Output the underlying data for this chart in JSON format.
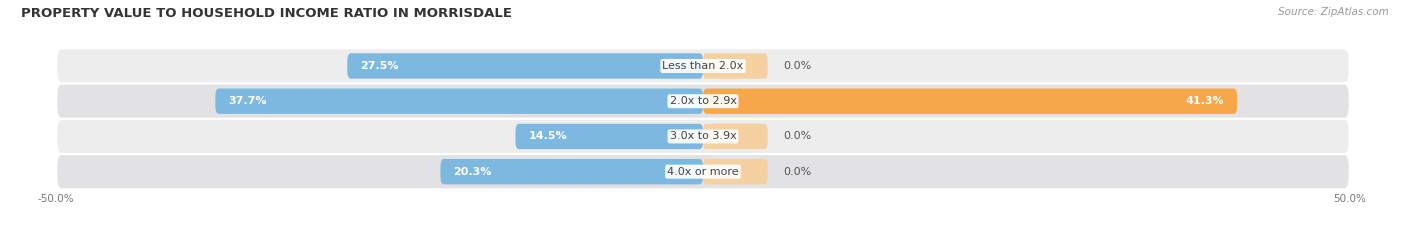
{
  "title": "PROPERTY VALUE TO HOUSEHOLD INCOME RATIO IN MORRISDALE",
  "source": "Source: ZipAtlas.com",
  "categories": [
    "Less than 2.0x",
    "2.0x to 2.9x",
    "3.0x to 3.9x",
    "4.0x or more"
  ],
  "without_mortgage": [
    27.5,
    37.7,
    14.5,
    20.3
  ],
  "with_mortgage": [
    0.0,
    41.3,
    0.0,
    0.0
  ],
  "xlim": [
    -50,
    50
  ],
  "color_without": "#7db8e0",
  "color_with": "#f5a74a",
  "color_with_light": "#f5d0a0",
  "color_bg_odd": "#ededee",
  "color_bg_even": "#e2e2e4",
  "title_fontsize": 9.5,
  "source_fontsize": 7.5,
  "label_fontsize": 8,
  "fig_width": 14.06,
  "fig_height": 2.33
}
